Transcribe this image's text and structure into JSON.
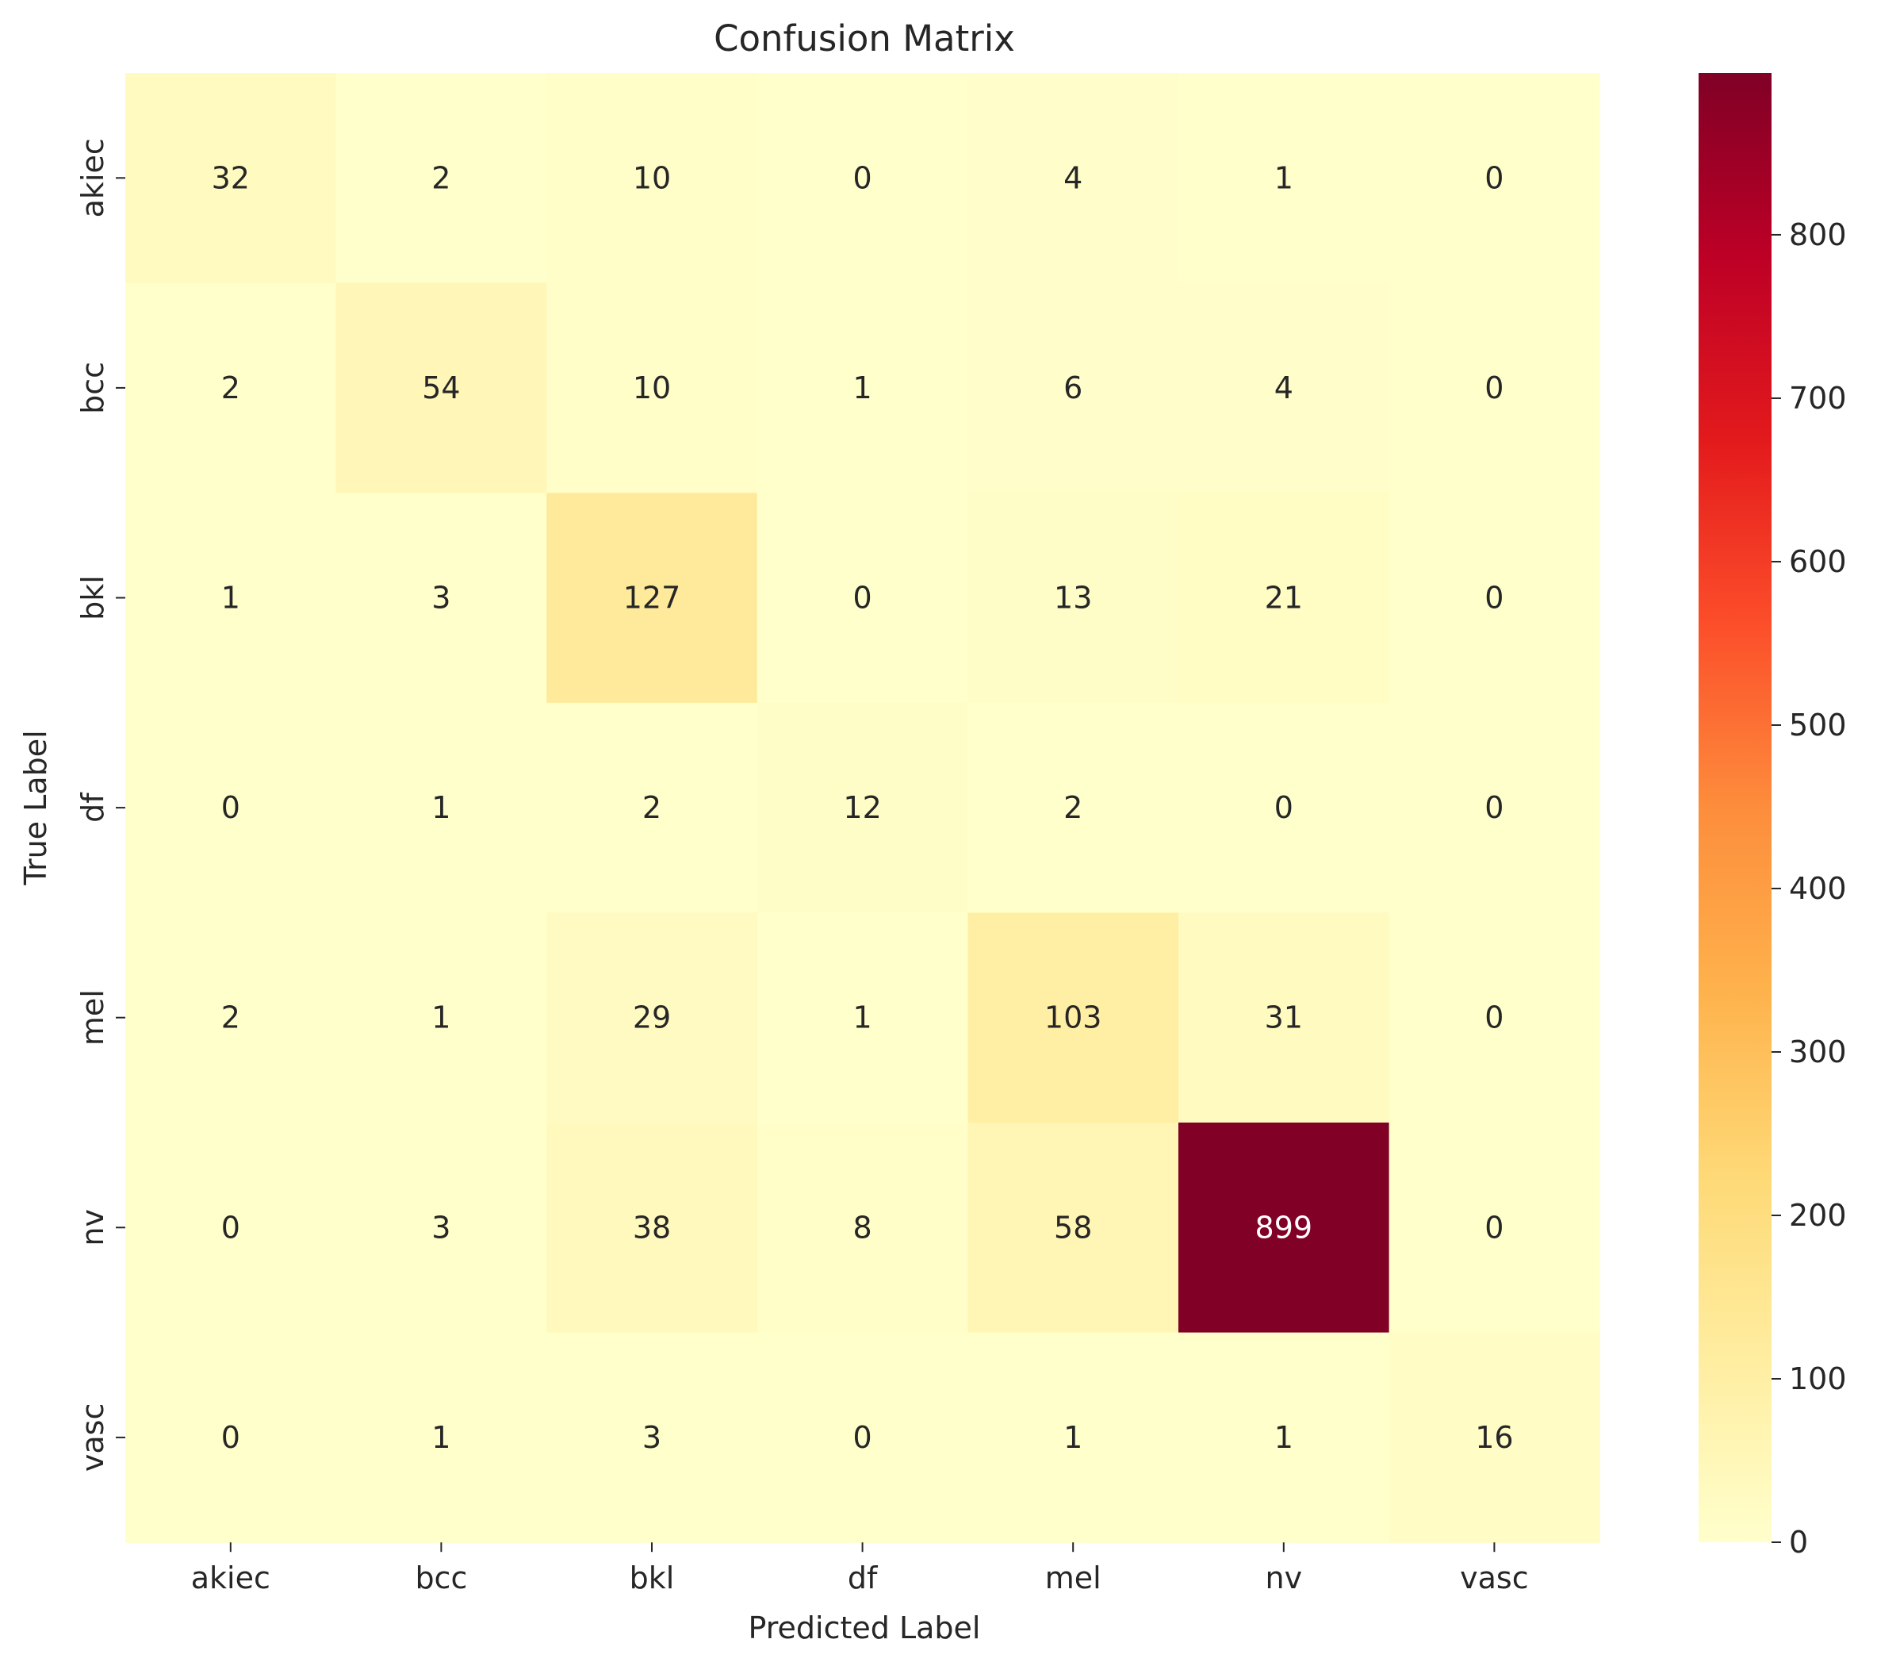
{
  "chart_data": {
    "type": "heatmap",
    "title": "Confusion Matrix",
    "xlabel": "Predicted Label",
    "ylabel": "True Label",
    "x_categories": [
      "akiec",
      "bcc",
      "bkl",
      "df",
      "mel",
      "nv",
      "vasc"
    ],
    "y_categories": [
      "akiec",
      "bcc",
      "bkl",
      "df",
      "mel",
      "nv",
      "vasc"
    ],
    "matrix": [
      [
        32,
        2,
        10,
        0,
        4,
        1,
        0
      ],
      [
        2,
        54,
        10,
        1,
        6,
        4,
        0
      ],
      [
        1,
        3,
        127,
        0,
        13,
        21,
        0
      ],
      [
        0,
        1,
        2,
        12,
        2,
        0,
        0
      ],
      [
        2,
        1,
        29,
        1,
        103,
        31,
        0
      ],
      [
        0,
        3,
        38,
        8,
        58,
        899,
        0
      ],
      [
        0,
        1,
        3,
        0,
        1,
        1,
        16
      ]
    ],
    "colormap": "YlOrRd",
    "colorbar": {
      "min": 0,
      "max": 899,
      "ticks": [
        0,
        100,
        200,
        300,
        400,
        500,
        600,
        700,
        800
      ]
    },
    "annotations": true
  }
}
